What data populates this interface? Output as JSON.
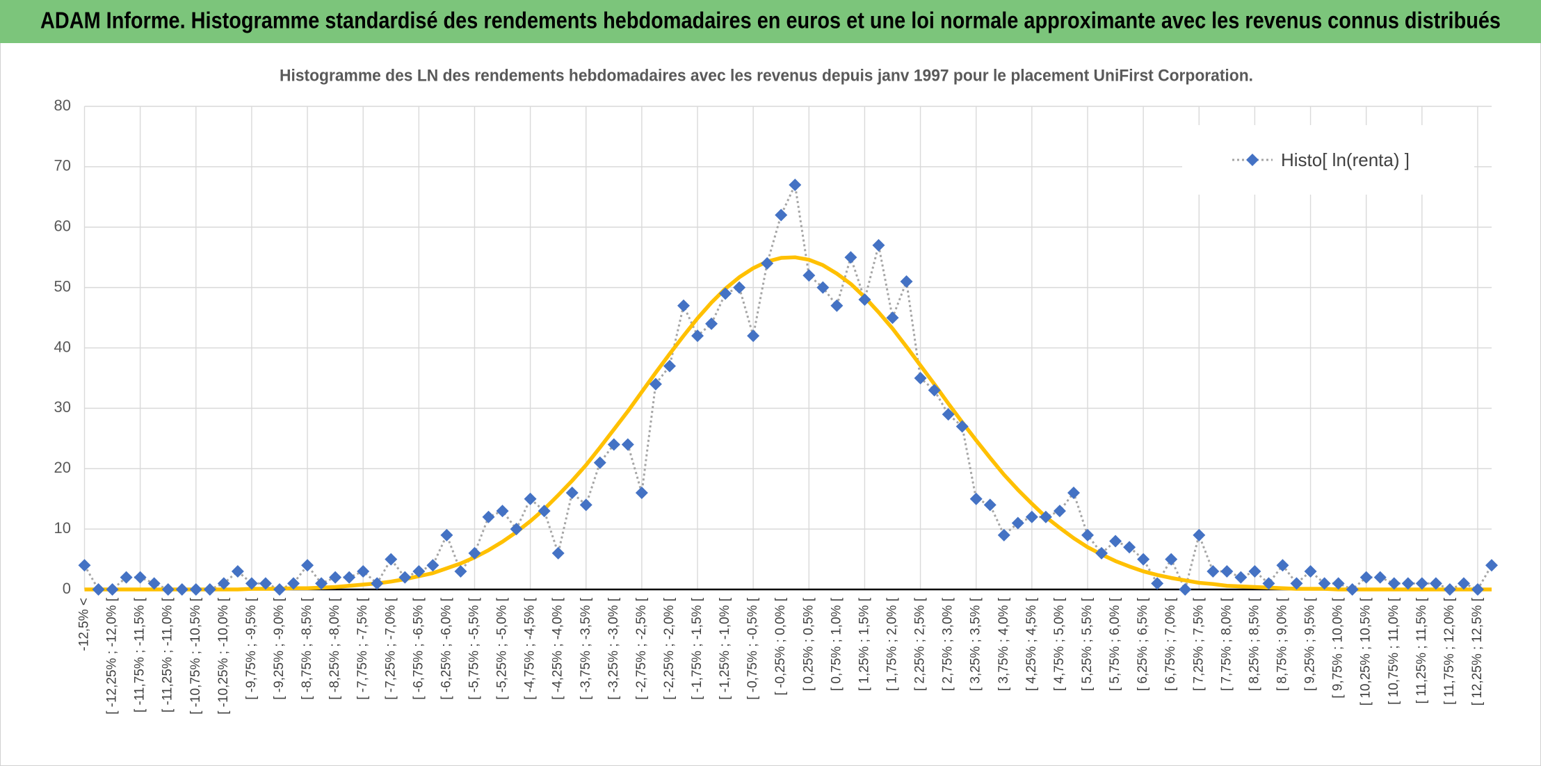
{
  "chart_data": {
    "type": "line",
    "title": "ADAM Informe. Histogramme standardisé des rendements hebdomadaires en euros et une loi normale approximante avec les revenus connus distribués",
    "subtitle": "Histogramme des LN des rendements hebdomadaires avec les revenus depuis janv 1997 pour le placement UniFirst Corporation.",
    "categories": [
      "-12,5% <",
      null,
      "[ -12,25% ; -12,0% [",
      null,
      "[ -11,75% ; -11,5% [",
      null,
      "[ -11,25% ; -11,0% [",
      null,
      "[ -10,75% ; -10,5% [",
      null,
      "[ -10,25% ; -10,0% [",
      null,
      "[ -9,75% ; -9,5% [",
      null,
      "[ -9,25% ; -9,0% [",
      null,
      "[ -8,75% ; -8,5% [",
      null,
      "[ -8,25% ; -8,0% [",
      null,
      "[ -7,75% ; -7,5% [",
      null,
      "[ -7,25% ; -7,0% [",
      null,
      "[ -6,75% ; -6,5% [",
      null,
      "[ -6,25% ; -6,0% [",
      null,
      "[ -5,75% ; -5,5% [",
      null,
      "[ -5,25% ; -5,0% [",
      null,
      "[ -4,75% ; -4,5% [",
      null,
      "[ -4,25% ; -4,0% [",
      null,
      "[ -3,75% ; -3,5% [",
      null,
      "[ -3,25% ; -3,0% [",
      null,
      "[ -2,75% ; -2,5% [",
      null,
      "[ -2,25% ; -2,0% [",
      null,
      "[ -1,75% ; -1,5% [",
      null,
      "[ -1,25% ; -1,0% [",
      null,
      "[ -0,75% ; -0,5% [",
      null,
      "[ -0,25% ; 0,0% [",
      null,
      "[ 0,25% ; 0,5% [",
      null,
      "[ 0,75% ; 1,0% [",
      null,
      "[ 1,25% ; 1,5% [",
      null,
      "[ 1,75% ; 2,0% [",
      null,
      "[ 2,25% ; 2,5% [",
      null,
      "[ 2,75% ; 3,0% [",
      null,
      "[ 3,25% ; 3,5% [",
      null,
      "[ 3,75% ; 4,0% [",
      null,
      "[ 4,25% ; 4,5% [",
      null,
      "[ 4,75% ; 5,0% [",
      null,
      "[ 5,25% ; 5,5% [",
      null,
      "[ 5,75% ; 6,0% [",
      null,
      "[ 6,25% ; 6,5% [",
      null,
      "[ 6,75% ; 7,0% [",
      null,
      "[ 7,25% ; 7,5% [",
      null,
      "[ 7,75% ; 8,0% [",
      null,
      "[ 8,25% ; 8,5% [",
      null,
      "[ 8,75% ; 9,0% [",
      null,
      "[ 9,25% ; 9,5% [",
      null,
      "[ 9,75% ; 10,0% [",
      null,
      "[ 10,25% ; 10,5% [",
      null,
      "[ 10,75% ; 11,0% [",
      null,
      "[ 11,25% ; 11,5% [",
      null,
      "[ 11,75% ; 12,0% [",
      null,
      "[ 12,25% ; 12,5% [",
      null
    ],
    "series": [
      {
        "name": "Histo[ ln(renta) ]",
        "color": "#4472c4",
        "line_color": "#a5a5a5",
        "line_style": "dotted",
        "marker": "diamond",
        "values": [
          4,
          0,
          0,
          2,
          2,
          1,
          0,
          0,
          0,
          0,
          1,
          3,
          1,
          1,
          0,
          1,
          4,
          1,
          2,
          2,
          3,
          1,
          5,
          2,
          3,
          4,
          9,
          3,
          6,
          12,
          13,
          10,
          15,
          13,
          6,
          16,
          14,
          21,
          24,
          24,
          16,
          34,
          37,
          47,
          42,
          44,
          49,
          50,
          42,
          54,
          62,
          67,
          52,
          50,
          47,
          55,
          48,
          57,
          45,
          51,
          35,
          33,
          29,
          27,
          15,
          14,
          9,
          11,
          12,
          12,
          13,
          16,
          9,
          6,
          8,
          7,
          5,
          1,
          5,
          0,
          9,
          3,
          3,
          2,
          3,
          1,
          4,
          1,
          3,
          1,
          1,
          0,
          2,
          2,
          1,
          1,
          1,
          1,
          0,
          1,
          0,
          4
        ]
      },
      {
        "color": "#ffc000",
        "line_style": "solid",
        "values": [
          0,
          0,
          0,
          0,
          0,
          0,
          0,
          0,
          0,
          0,
          0,
          0,
          0.1,
          0.1,
          0.1,
          0.2,
          0.2,
          0.3,
          0.4,
          0.6,
          0.8,
          1.0,
          1.3,
          1.7,
          2.2,
          2.7,
          3.5,
          4.3,
          5.3,
          6.5,
          7.9,
          9.5,
          11.3,
          13.3,
          15.6,
          18.0,
          20.6,
          23.5,
          26.5,
          29.5,
          32.7,
          35.9,
          39.0,
          42.0,
          44.9,
          47.5,
          49.8,
          51.7,
          53.2,
          54.3,
          54.9,
          55.0,
          54.6,
          53.7,
          52.3,
          50.6,
          48.4,
          45.9,
          43.2,
          40.2,
          37.1,
          34.0,
          30.8,
          27.7,
          24.7,
          21.8,
          19.0,
          16.5,
          14.2,
          12.0,
          10.2,
          8.5,
          7.0,
          5.8,
          4.7,
          3.8,
          3.0,
          2.4,
          1.9,
          1.5,
          1.1,
          0.9,
          0.6,
          0.5,
          0.4,
          0.3,
          0.2,
          0.1,
          0.1,
          0.1,
          0,
          0,
          0,
          0,
          0,
          0,
          0,
          0,
          0,
          0,
          0,
          0
        ]
      }
    ],
    "ylim": [
      0,
      80
    ],
    "yticks": [
      0,
      10,
      20,
      30,
      40,
      50,
      60,
      70,
      80
    ],
    "grid": true,
    "legend": "top-right"
  }
}
